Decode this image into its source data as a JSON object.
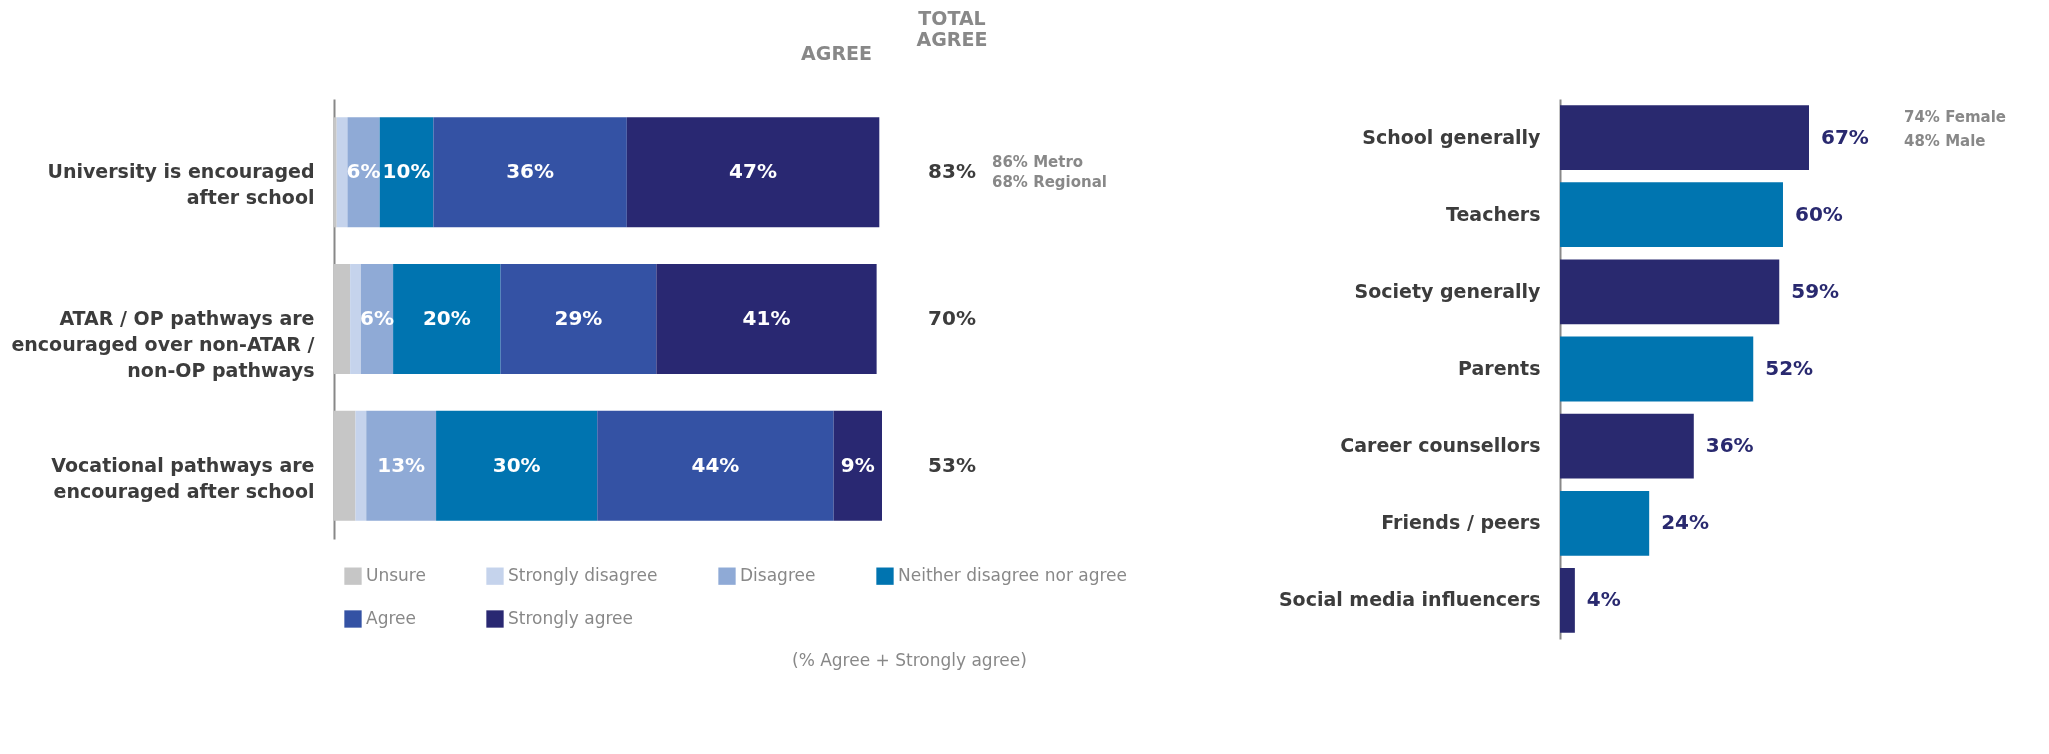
{
  "chart_data": [
    {
      "type": "bar",
      "orientation": "horizontal",
      "stacked": true,
      "legend": "bottom",
      "grid": false,
      "categories": [
        "University is encouraged after school",
        "ATAR / OP pathways are encouraged over non-ATAR / non-OP pathways",
        "Vocational pathways are encouraged after school"
      ],
      "series": [
        {
          "name": "Unsure",
          "color": "#c6c6c6",
          "values": [
            0.5,
            3,
            4
          ],
          "value_labels": [
            null,
            null,
            null
          ]
        },
        {
          "name": "Strongly disagree",
          "color": "#c5d3ec",
          "values": [
            2,
            2,
            2
          ],
          "value_labels": [
            null,
            null,
            null
          ]
        },
        {
          "name": "Disagree",
          "color": "#8faad6",
          "values": [
            6,
            6,
            13
          ],
          "value_labels": [
            "6%",
            "6%",
            "13%"
          ]
        },
        {
          "name": "Neither disagree nor agree",
          "color": "#0074b0",
          "values": [
            10,
            20,
            30
          ],
          "value_labels": [
            "10%",
            "20%",
            "30%"
          ]
        },
        {
          "name": "Agree",
          "color": "#3452a4",
          "values": [
            36,
            29,
            44
          ],
          "value_labels": [
            "36%",
            "29%",
            "44%"
          ]
        },
        {
          "name": "Strongly agree",
          "color": "#292872",
          "values": [
            47,
            41,
            9
          ],
          "value_labels": [
            "47%",
            "41%",
            "9%"
          ]
        }
      ],
      "annotations": [
        "AGREE",
        "TOTAL AGREE",
        "83%",
        "70%",
        "53%",
        "86% Metro",
        "68% Regional",
        "(% Agree + Strongly agree)"
      ]
    },
    {
      "type": "bar",
      "orientation": "horizontal",
      "grid": false,
      "categories": [
        "School generally",
        "Teachers",
        "Society generally",
        "Parents",
        "Career counsellors",
        "Friends / peers",
        "Social media influencers"
      ],
      "values": [
        67,
        60,
        59,
        52,
        36,
        24,
        4
      ],
      "colors": [
        "#29296f",
        "#0075b0",
        "#29296f",
        "#0075b0",
        "#29296f",
        "#0075b0",
        "#29296f"
      ],
      "value_labels": [
        "67%",
        "60%",
        "59%",
        "52%",
        "36%",
        "24%",
        "4%"
      ],
      "annotations": [
        "74%  Female",
        "48%  Male"
      ]
    }
  ]
}
